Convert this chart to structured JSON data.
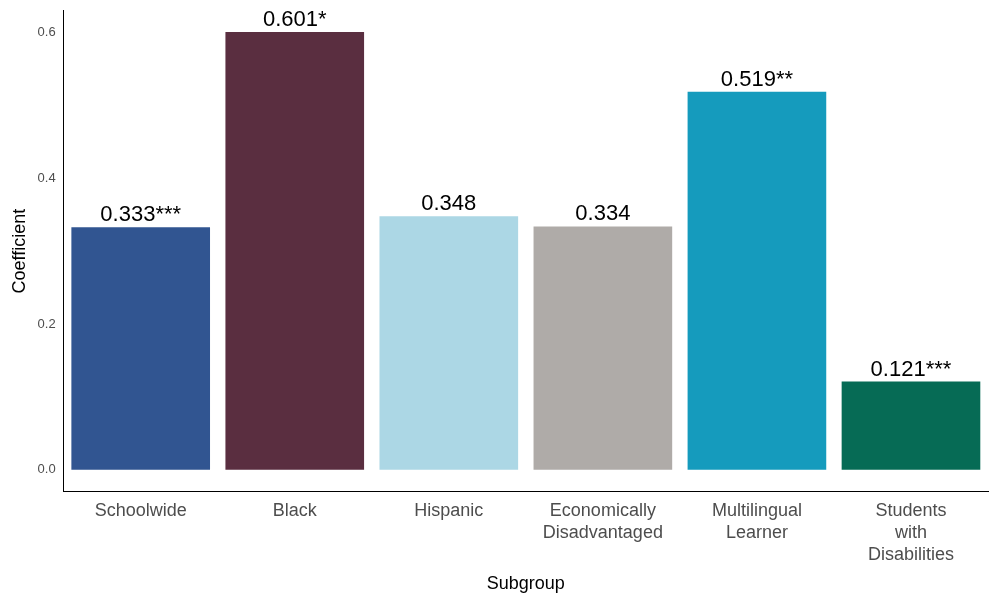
{
  "chart_data": {
    "type": "bar",
    "xlabel": "Subgroup",
    "ylabel": "Coefficient",
    "categories": [
      "Schoolwide",
      "Black",
      "Hispanic",
      "Economically Disadvantaged",
      "Multilingual Learner",
      "Students with Disabilities"
    ],
    "values": [
      0.333,
      0.601,
      0.348,
      0.334,
      0.519,
      0.121
    ],
    "value_labels": [
      "0.333***",
      "0.601*",
      "0.348",
      "0.334",
      "0.519**",
      "0.121***"
    ],
    "colors": [
      "#315591",
      "#5a2e40",
      "#acd7e5",
      "#afaba8",
      "#159bbd",
      "#066b55"
    ],
    "ylim": [
      -0.03,
      0.63
    ],
    "yticks": [
      {
        "value": 0,
        "label": "0.0"
      },
      {
        "value": 0.2,
        "label": "0.2"
      },
      {
        "value": 0.4,
        "label": "0.4"
      },
      {
        "value": 0.6,
        "label": "0.6"
      }
    ],
    "grid": false,
    "legend": false
  }
}
